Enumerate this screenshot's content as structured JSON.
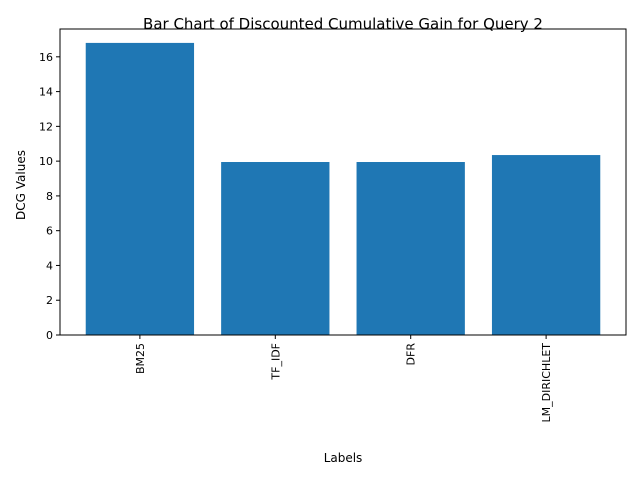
{
  "chart_data": {
    "type": "bar",
    "title": "Bar Chart of Discounted Cumulative Gain for Query 2",
    "xlabel": "Labels",
    "ylabel": "DCG Values",
    "categories": [
      "BM25",
      "TF_IDF",
      "DFR",
      "LM_DIRICHLET"
    ],
    "values": [
      16.8,
      9.95,
      9.95,
      10.35
    ],
    "ylim": [
      0,
      17.6
    ],
    "yticks": [
      0,
      2,
      4,
      6,
      8,
      10,
      12,
      14,
      16
    ],
    "bar_color": "#1f77b4",
    "grid": false,
    "legend": "none"
  }
}
